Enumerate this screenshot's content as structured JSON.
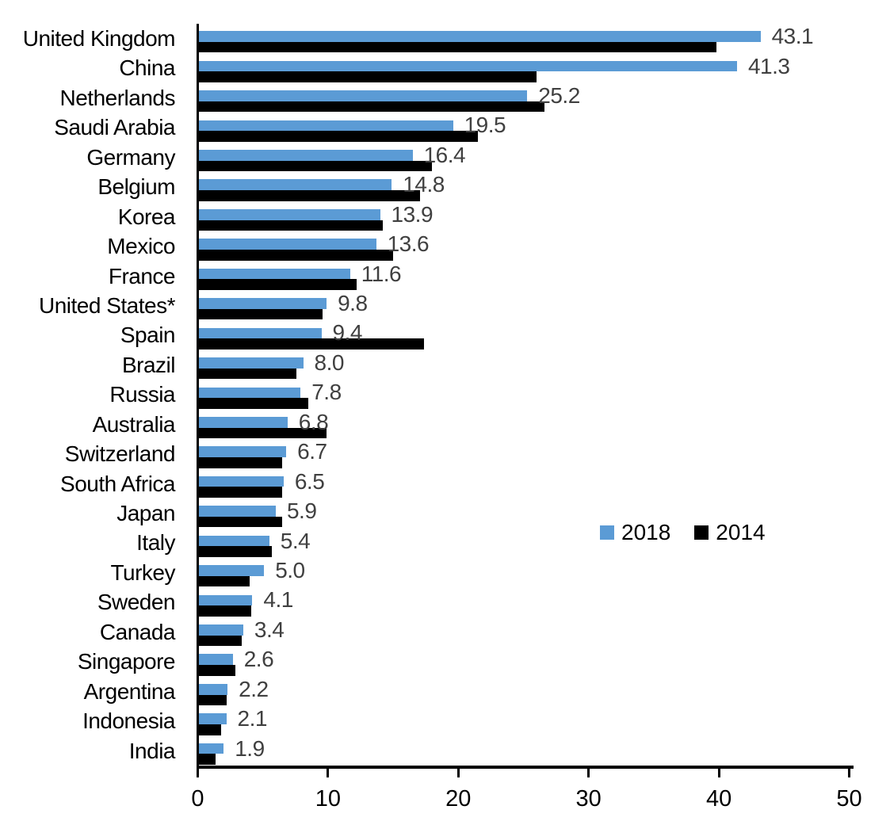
{
  "chart_data": {
    "type": "bar",
    "orientation": "horizontal",
    "title": "",
    "xlabel": "",
    "ylabel": "",
    "xlim": [
      0,
      50
    ],
    "x_ticks": [
      "0",
      "10",
      "20",
      "30",
      "40",
      "50"
    ],
    "grid": false,
    "legend_position": "middle-right",
    "categories": [
      "United Kingdom",
      "China",
      "Netherlands",
      "Saudi Arabia",
      "Germany",
      "Belgium",
      "Korea",
      "Mexico",
      "France",
      "United States*",
      "Spain",
      "Brazil",
      "Russia",
      "Australia",
      "Switzerland",
      "South Africa",
      "Japan",
      "Italy",
      "Turkey",
      "Sweden",
      "Canada",
      "Singapore",
      "Argentina",
      "Indonesia",
      "India"
    ],
    "series": [
      {
        "name": "2018",
        "color": "#5B9BD5",
        "values": [
          43.1,
          41.3,
          25.2,
          19.5,
          16.4,
          14.8,
          13.9,
          13.6,
          11.6,
          9.8,
          9.4,
          8.0,
          7.8,
          6.8,
          6.7,
          6.5,
          5.9,
          5.4,
          5.0,
          4.1,
          3.4,
          2.6,
          2.2,
          2.1,
          1.9
        ]
      },
      {
        "name": "2014",
        "color": "#000000",
        "values": [
          39.7,
          25.9,
          26.5,
          21.4,
          17.9,
          17.0,
          14.1,
          14.9,
          12.1,
          9.5,
          17.3,
          7.5,
          8.4,
          9.8,
          6.4,
          6.4,
          6.4,
          5.6,
          3.9,
          4.0,
          3.3,
          2.8,
          2.1,
          1.7,
          1.3
        ]
      }
    ],
    "data_labels": {
      "labeled_series": "2018",
      "color": "#404040",
      "values": [
        "43.1",
        "41.3",
        "25.2",
        "19.5",
        "16.4",
        "14.8",
        "13.9",
        "13.6",
        "11.6",
        "9.8",
        "9.4",
        "8.0",
        "7.8",
        "6.8",
        "6.7",
        "6.5",
        "5.9",
        "5.4",
        "5.0",
        "4.1",
        "3.4",
        "2.6",
        "2.2",
        "2.1",
        "1.9"
      ]
    }
  },
  "legend": {
    "items": [
      {
        "label": "2018",
        "color": "#5B9BD5"
      },
      {
        "label": "2014",
        "color": "#000000"
      }
    ]
  }
}
